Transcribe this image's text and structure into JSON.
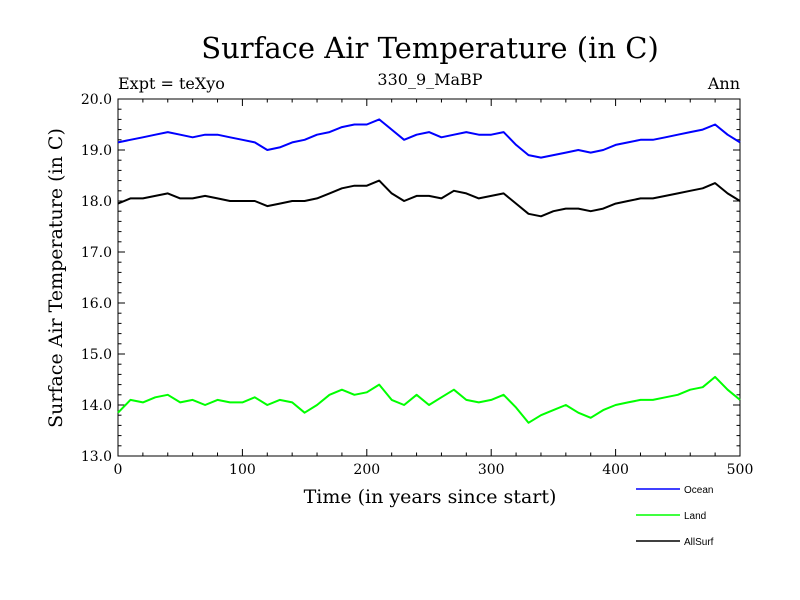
{
  "chart_data": {
    "type": "line",
    "title": "Surface Air Temperature (in C)",
    "subtitle_left": "Expt = teXyo",
    "subtitle_center": "330_9_MaBP",
    "subtitle_right": "Ann",
    "xlabel": "Time (in years since start)",
    "ylabel": "Surface Air Temperature (in C)",
    "xlim": [
      0,
      500
    ],
    "ylim": [
      13.0,
      20.0
    ],
    "xticks": [
      "0",
      "100",
      "200",
      "300",
      "400",
      "500"
    ],
    "yticks": [
      "13.0",
      "14.0",
      "15.0",
      "16.0",
      "17.0",
      "18.0",
      "19.0",
      "20.0"
    ],
    "grid": false,
    "legend_position": "bottom-right",
    "x": [
      0,
      10,
      20,
      30,
      40,
      50,
      60,
      70,
      80,
      90,
      100,
      110,
      120,
      130,
      140,
      150,
      160,
      170,
      180,
      190,
      200,
      210,
      220,
      230,
      240,
      250,
      260,
      270,
      280,
      290,
      300,
      310,
      320,
      330,
      340,
      350,
      360,
      370,
      380,
      390,
      400,
      410,
      420,
      430,
      440,
      450,
      460,
      470,
      480,
      490,
      500
    ],
    "series": [
      {
        "name": "Ocean",
        "color": "#0000ff",
        "values": [
          19.15,
          19.2,
          19.25,
          19.3,
          19.35,
          19.3,
          19.25,
          19.3,
          19.3,
          19.25,
          19.2,
          19.15,
          19.0,
          19.05,
          19.15,
          19.2,
          19.3,
          19.35,
          19.45,
          19.5,
          19.5,
          19.6,
          19.4,
          19.2,
          19.3,
          19.35,
          19.25,
          19.3,
          19.35,
          19.3,
          19.3,
          19.35,
          19.1,
          18.9,
          18.85,
          18.9,
          18.95,
          19.0,
          18.95,
          19.0,
          19.1,
          19.15,
          19.2,
          19.2,
          19.25,
          19.3,
          19.35,
          19.4,
          19.5,
          19.3,
          19.15
        ]
      },
      {
        "name": "Land",
        "color": "#00ff00",
        "values": [
          13.85,
          14.1,
          14.05,
          14.15,
          14.2,
          14.05,
          14.1,
          14.0,
          14.1,
          14.05,
          14.05,
          14.15,
          14.0,
          14.1,
          14.05,
          13.85,
          14.0,
          14.2,
          14.3,
          14.2,
          14.25,
          14.4,
          14.1,
          14.0,
          14.2,
          14.0,
          14.15,
          14.3,
          14.1,
          14.05,
          14.1,
          14.2,
          13.95,
          13.65,
          13.8,
          13.9,
          14.0,
          13.85,
          13.75,
          13.9,
          14.0,
          14.05,
          14.1,
          14.1,
          14.15,
          14.2,
          14.3,
          14.35,
          14.55,
          14.3,
          14.1
        ]
      },
      {
        "name": "AllSurf",
        "color": "#000000",
        "values": [
          17.95,
          18.05,
          18.05,
          18.1,
          18.15,
          18.05,
          18.05,
          18.1,
          18.05,
          18.0,
          18.0,
          18.0,
          17.9,
          17.95,
          18.0,
          18.0,
          18.05,
          18.15,
          18.25,
          18.3,
          18.3,
          18.4,
          18.15,
          18.0,
          18.1,
          18.1,
          18.05,
          18.2,
          18.15,
          18.05,
          18.1,
          18.15,
          17.95,
          17.75,
          17.7,
          17.8,
          17.85,
          17.85,
          17.8,
          17.85,
          17.95,
          18.0,
          18.05,
          18.05,
          18.1,
          18.15,
          18.2,
          18.25,
          18.35,
          18.15,
          18.0
        ]
      }
    ]
  }
}
